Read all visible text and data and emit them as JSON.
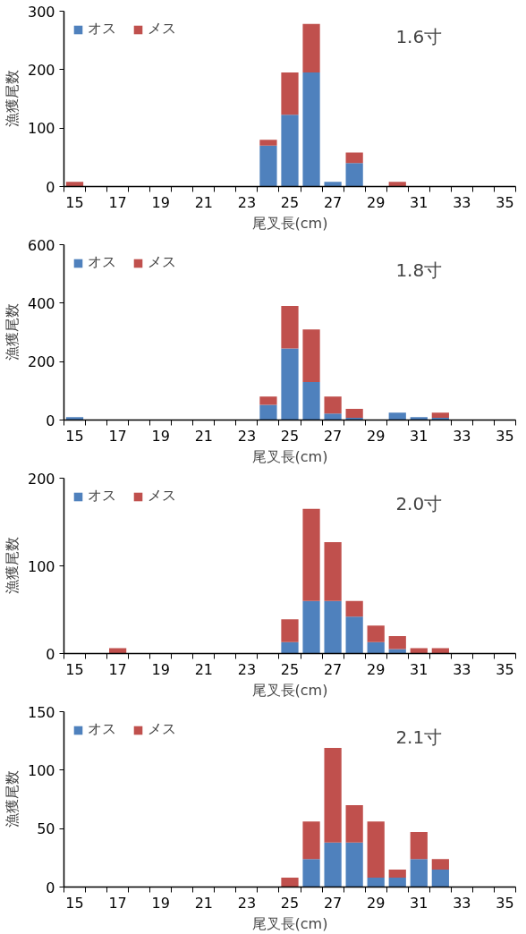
{
  "chart_data": [
    {
      "type": "bar",
      "title": "1.6寸",
      "xlabel": "尾叉長(cm)",
      "ylabel": "漁獲尾数",
      "stacked": true,
      "legend": "top left",
      "grid": false,
      "categories": [
        "15",
        null,
        "17",
        null,
        "19",
        null,
        "21",
        null,
        "23",
        null,
        "25",
        null,
        "27",
        null,
        "29",
        null,
        "31",
        null,
        "33",
        null,
        "35"
      ],
      "ylim": [
        0,
        300
      ],
      "yticks": [
        0,
        100,
        200,
        300
      ],
      "series": [
        {
          "name": "オス",
          "color": "#4f81bd",
          "values": [
            0,
            0,
            0,
            0,
            0,
            0,
            0,
            0,
            0,
            70,
            123,
            195,
            8,
            40,
            0,
            0,
            0,
            0,
            0,
            0,
            0
          ]
        },
        {
          "name": "メス",
          "color": "#c0504d",
          "values": [
            8,
            0,
            0,
            0,
            0,
            0,
            0,
            0,
            0,
            10,
            72,
            83,
            0,
            18,
            0,
            8,
            0,
            0,
            0,
            0,
            0
          ]
        }
      ]
    },
    {
      "type": "bar",
      "title": "1.8寸",
      "xlabel": "尾叉長(cm)",
      "ylabel": "漁獲尾数",
      "stacked": true,
      "legend": "top left",
      "grid": false,
      "categories": [
        "15",
        null,
        "17",
        null,
        "19",
        null,
        "21",
        null,
        "23",
        null,
        "25",
        null,
        "27",
        null,
        "29",
        null,
        "31",
        null,
        "33",
        null,
        "35"
      ],
      "ylim": [
        0,
        600
      ],
      "yticks": [
        0,
        200,
        400,
        600
      ],
      "series": [
        {
          "name": "オス",
          "color": "#4f81bd",
          "values": [
            10,
            0,
            0,
            0,
            0,
            0,
            0,
            0,
            0,
            52,
            245,
            130,
            22,
            8,
            0,
            25,
            10,
            8,
            0,
            0,
            0
          ]
        },
        {
          "name": "メス",
          "color": "#c0504d",
          "values": [
            0,
            0,
            0,
            0,
            0,
            0,
            0,
            0,
            0,
            28,
            145,
            180,
            58,
            30,
            0,
            0,
            0,
            17,
            0,
            0,
            0
          ]
        }
      ]
    },
    {
      "type": "bar",
      "title": "2.0寸",
      "xlabel": "尾叉長(cm)",
      "ylabel": "漁獲尾数",
      "stacked": true,
      "legend": "top left",
      "grid": false,
      "categories": [
        "15",
        null,
        "17",
        null,
        "19",
        null,
        "21",
        null,
        "23",
        null,
        "25",
        null,
        "27",
        null,
        "29",
        null,
        "31",
        null,
        "33",
        null,
        "35"
      ],
      "ylim": [
        0,
        200
      ],
      "yticks": [
        0,
        100,
        200
      ],
      "series": [
        {
          "name": "オス",
          "color": "#4f81bd",
          "values": [
            0,
            0,
            0,
            0,
            0,
            0,
            0,
            0,
            0,
            0,
            13,
            60,
            60,
            42,
            13,
            5,
            0,
            0,
            0,
            0,
            0
          ]
        },
        {
          "name": "メス",
          "color": "#c0504d",
          "values": [
            0,
            0,
            6,
            0,
            0,
            0,
            0,
            0,
            0,
            0,
            26,
            105,
            67,
            18,
            19,
            15,
            6,
            6,
            0,
            0,
            0
          ]
        }
      ]
    },
    {
      "type": "bar",
      "title": "2.1寸",
      "xlabel": "尾叉長(cm)",
      "ylabel": "漁獲尾数",
      "stacked": true,
      "legend": "top left",
      "grid": false,
      "categories": [
        "15",
        null,
        "17",
        null,
        "19",
        null,
        "21",
        null,
        "23",
        null,
        "25",
        null,
        "27",
        null,
        "29",
        null,
        "31",
        null,
        "33",
        null,
        "35"
      ],
      "ylim": [
        0,
        150
      ],
      "yticks": [
        0,
        50,
        100,
        150
      ],
      "series": [
        {
          "name": "オス",
          "color": "#4f81bd",
          "values": [
            0,
            0,
            0,
            0,
            0,
            0,
            0,
            0,
            0,
            0,
            0,
            24,
            38,
            38,
            8,
            8,
            24,
            15,
            0,
            0,
            0
          ]
        },
        {
          "name": "メス",
          "color": "#c0504d",
          "values": [
            0,
            0,
            0,
            0,
            0,
            0,
            0,
            0,
            0,
            0,
            8,
            32,
            81,
            32,
            48,
            7,
            23,
            9,
            0,
            0,
            0
          ]
        }
      ]
    }
  ]
}
